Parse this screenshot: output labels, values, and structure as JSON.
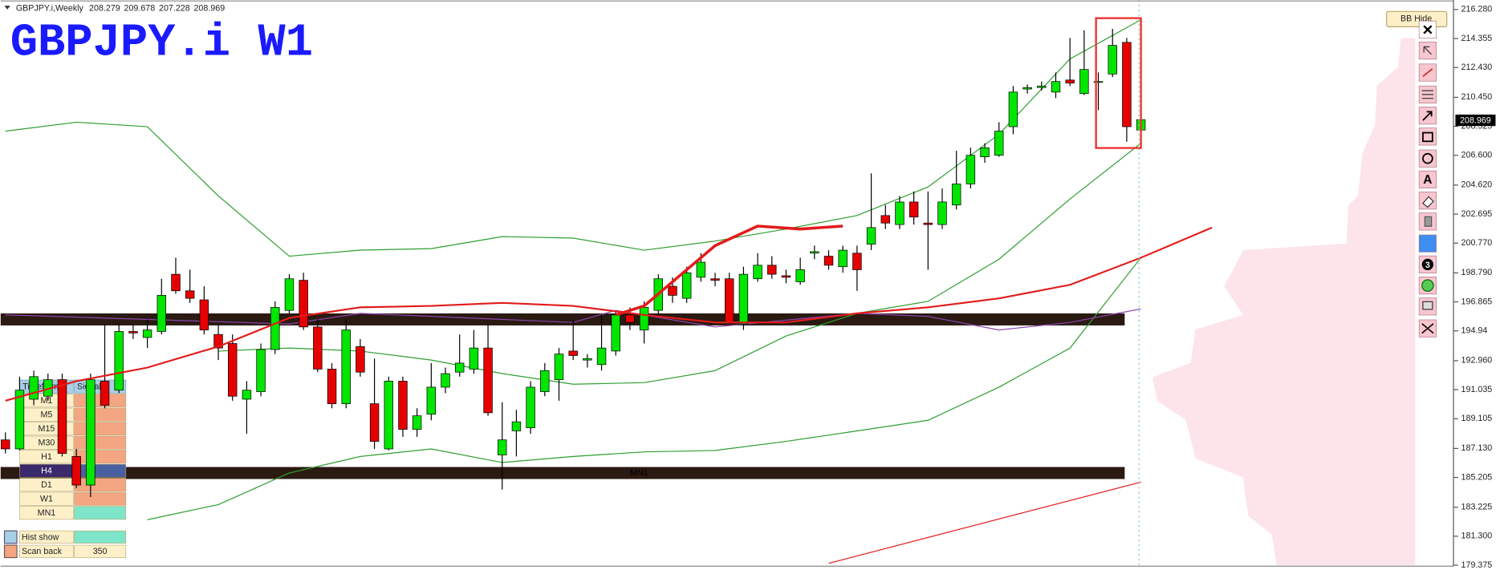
{
  "chart_data": {
    "type": "candlestick",
    "title": "GBPJPY.i W1",
    "symbol": "GBPJPY.i,Weekly",
    "categories": [
      null,
      null,
      null,
      null,
      null,
      null,
      null,
      null,
      null,
      null,
      null,
      null,
      null,
      null,
      null,
      null,
      null,
      null,
      null,
      null,
      null,
      null,
      null,
      null,
      null,
      null,
      null,
      null,
      null,
      null,
      null,
      null,
      null,
      null,
      null,
      null,
      null,
      null,
      null,
      null,
      null,
      null,
      null,
      null,
      null,
      null,
      null,
      null,
      null,
      null,
      null,
      null,
      null,
      null,
      null,
      null,
      null,
      null,
      null,
      null,
      null,
      null,
      null,
      null,
      null,
      null,
      null,
      null,
      null,
      null,
      null,
      null,
      null,
      null,
      null,
      null,
      null,
      null,
      null,
      null,
      null
    ],
    "open": [
      187.7,
      187.1,
      190.4,
      190.6,
      191.7,
      186.6,
      184.7,
      191.6,
      191.0,
      194.9,
      194.5,
      194.9,
      198.7,
      197.6,
      197.0,
      194.7,
      194.1,
      190.4,
      190.9,
      193.7,
      196.3,
      198.3,
      195.2,
      192.4,
      190.1,
      193.9,
      190.1,
      187.1,
      191.6,
      188.4,
      189.4,
      191.2,
      192.2,
      192.4,
      193.8,
      186.7,
      188.3,
      188.5,
      190.9,
      191.7,
      193.6,
      193.0,
      192.7,
      193.6,
      196.0,
      195.0,
      196.3,
      197.9,
      197.1,
      198.5,
      198.4,
      198.4,
      195.4,
      198.4,
      199.3,
      198.6,
      198.2,
      200.1,
      199.9,
      199.2,
      200.1,
      200.7,
      202.6,
      202.0,
      203.5,
      202.1,
      202.0,
      203.3,
      204.7,
      206.5,
      206.6,
      208.5,
      211.0,
      211.1,
      210.8,
      211.6,
      210.7,
      211.5,
      212.0,
      214.1,
      208.279
    ],
    "high": [
      188.2,
      191.9,
      192.3,
      192.1,
      192.1,
      187.1,
      192.1,
      195.4,
      195.4,
      195.4,
      195.7,
      198.4,
      199.8,
      199.0,
      197.9,
      195.4,
      194.7,
      191.6,
      194.1,
      196.9,
      198.7,
      198.8,
      195.7,
      192.8,
      195.7,
      194.4,
      193.1,
      191.9,
      191.9,
      189.8,
      192.8,
      192.5,
      194.7,
      195.0,
      195.5,
      190.2,
      189.7,
      191.6,
      192.8,
      193.8,
      195.7,
      193.4,
      196.0,
      196.3,
      196.5,
      196.9,
      198.7,
      198.5,
      199.2,
      200.1,
      198.8,
      198.8,
      199.2,
      200.1,
      199.9,
      199.0,
      199.8,
      200.6,
      200.3,
      200.6,
      200.6,
      205.4,
      203.3,
      203.9,
      204.2,
      204.2,
      204.4,
      206.9,
      207.1,
      207.4,
      208.8,
      211.2,
      211.3,
      211.5,
      212.1,
      214.4,
      214.9,
      212.1,
      215.0,
      214.4,
      209.678
    ],
    "low": [
      186.8,
      187.0,
      190.0,
      190.3,
      186.6,
      184.5,
      183.9,
      189.8,
      190.8,
      194.4,
      193.8,
      194.7,
      197.4,
      196.8,
      194.7,
      193.0,
      190.3,
      188.1,
      190.6,
      193.4,
      196.0,
      195.0,
      192.2,
      189.8,
      189.8,
      191.9,
      187.1,
      187.0,
      187.9,
      187.9,
      189.0,
      190.8,
      191.9,
      192.1,
      189.3,
      184.4,
      186.6,
      188.1,
      190.6,
      190.3,
      193.0,
      192.5,
      192.3,
      193.3,
      195.0,
      194.1,
      196.0,
      196.8,
      196.8,
      198.2,
      197.9,
      195.4,
      195.0,
      198.2,
      198.4,
      198.1,
      198.0,
      199.7,
      199.0,
      198.8,
      197.6,
      200.3,
      201.7,
      201.7,
      202.0,
      199.0,
      201.7,
      203.0,
      204.4,
      206.1,
      206.5,
      208.0,
      210.7,
      210.9,
      210.4,
      211.2,
      210.6,
      209.6,
      211.8,
      207.5,
      207.228
    ],
    "close": [
      187.1,
      191.0,
      191.9,
      191.7,
      186.8,
      184.7,
      191.7,
      190.0,
      194.9,
      194.8,
      195.0,
      197.3,
      197.6,
      197.1,
      195.0,
      193.8,
      190.6,
      191.0,
      193.7,
      196.5,
      198.4,
      195.2,
      192.4,
      190.1,
      195.0,
      192.2,
      187.6,
      191.6,
      188.4,
      189.3,
      191.2,
      192.1,
      192.8,
      193.8,
      189.5,
      187.7,
      188.9,
      191.2,
      192.3,
      193.4,
      193.3,
      193.1,
      193.8,
      196.0,
      195.5,
      196.5,
      198.4,
      197.3,
      198.8,
      199.5,
      198.3,
      195.5,
      198.7,
      199.3,
      198.7,
      198.5,
      199.0,
      200.2,
      199.3,
      200.3,
      199.0,
      201.8,
      202.1,
      203.5,
      202.5,
      202.0,
      203.5,
      204.7,
      206.6,
      207.1,
      208.2,
      210.8,
      211.1,
      211.2,
      211.5,
      211.4,
      212.3,
      211.5,
      213.9,
      208.5,
      208.969
    ],
    "up_color": "#00e600",
    "down_color": "#e60000",
    "ylim": [
      179.375,
      216.28
    ],
    "yticks": [
      {
        "value": 216.28,
        "label": "216.280"
      },
      {
        "value": 214.355,
        "label": "214.355"
      },
      {
        "value": 212.43,
        "label": "212.430"
      },
      {
        "value": 210.45,
        "label": "210.450"
      },
      {
        "value": 208.525,
        "label": "208.525"
      },
      {
        "value": 206.6,
        "label": "206.600"
      },
      {
        "value": 204.62,
        "label": "204.620"
      },
      202.695,
      {
        "value": 200.77,
        "label": "200.770"
      },
      {
        "value": 198.79,
        "label": "198.790"
      },
      196.865,
      194.94,
      {
        "value": 192.96,
        "label": "192.960"
      },
      191.035,
      189.105,
      {
        "value": 187.13,
        "label": "187.130"
      },
      185.205,
      183.225,
      {
        "value": 181.3,
        "label": "181.300"
      },
      179.375
    ],
    "overlays": [
      {
        "color": "#2e9e2e",
        "width": 1,
        "x": [
          0,
          5,
          10,
          15,
          20,
          25,
          30,
          35,
          40,
          45,
          50,
          55,
          60,
          65,
          70,
          75,
          80
        ],
        "values": [
          208.2,
          208.8,
          208.5,
          203.9,
          199.9,
          200.3,
          200.4,
          201.2,
          201.1,
          200.3,
          200.9,
          201.7,
          202.6,
          204.5,
          208.0,
          213.0,
          215.6
        ]
      },
      {
        "color": "#2e9e2e",
        "width": 1,
        "x": [
          15,
          20,
          25,
          30,
          35,
          40,
          45,
          50,
          55,
          60,
          65,
          70,
          75,
          80
        ],
        "values": [
          193.6,
          193.8,
          193.6,
          193.0,
          192.1,
          191.4,
          191.5,
          192.3,
          194.6,
          196.1,
          196.9,
          199.7,
          203.7,
          207.4
        ]
      },
      {
        "color": "#2e9e2e",
        "width": 1,
        "x": [
          10,
          15,
          20,
          25,
          30,
          35,
          40,
          45,
          50,
          55,
          60,
          65,
          70,
          75,
          80
        ],
        "values": [
          182.4,
          183.4,
          185.5,
          186.6,
          187.1,
          186.2,
          186.6,
          186.9,
          187.0,
          187.6,
          188.3,
          189.0,
          191.2,
          193.8,
          199.8
        ]
      },
      {
        "color": "#8e44ad",
        "width": 1,
        "x": [
          0,
          20,
          25,
          40,
          43,
          50,
          60,
          65,
          70,
          75,
          80
        ],
        "values": [
          196.0,
          195.4,
          196.1,
          195.5,
          196.3,
          195.2,
          196.1,
          195.9,
          195.0,
          195.5,
          196.4
        ]
      },
      {
        "color": "#e31b1b",
        "width": 1.8,
        "x": [
          0,
          5,
          10,
          15,
          20,
          25,
          30,
          35,
          40,
          45,
          50,
          55,
          60,
          65,
          70,
          75,
          80,
          85
        ],
        "values": [
          190.3,
          191.6,
          192.5,
          193.9,
          195.8,
          196.5,
          196.6,
          196.8,
          196.6,
          196.0,
          195.5,
          195.5,
          196.1,
          196.5,
          197.1,
          198.0,
          199.8,
          201.8
        ]
      },
      {
        "color": "#e31b1b",
        "width": 3,
        "x": [
          43,
          45,
          48,
          50,
          53,
          56,
          59
        ],
        "values": [
          196.0,
          196.6,
          199.0,
          200.6,
          201.9,
          201.7,
          201.9
        ]
      },
      {
        "color": "#e31b1b",
        "width": 1,
        "x": [
          58,
          80
        ],
        "values": [
          179.5,
          184.9
        ]
      }
    ],
    "zones": [
      {
        "top": 196.1,
        "bottom": 195.3
      },
      {
        "top": 185.9,
        "bottom": 185.1,
        "label": "MN1"
      }
    ]
  },
  "panel": {
    "headers": [
      "Timeframe",
      "Signal"
    ],
    "rows": [
      {
        "label": "M1",
        "color": "#f4a582"
      },
      {
        "label": "M5",
        "color": "#f4a582"
      },
      {
        "label": "M15",
        "color": "#f4a582"
      },
      {
        "label": "M30",
        "color": "#f4a582"
      },
      {
        "label": "H1",
        "color": "#f4a582"
      },
      {
        "label": "H4",
        "color": "#4a5fa0"
      },
      {
        "label": "D1",
        "color": "#f4a582"
      },
      {
        "label": "W1",
        "color": "#f4a582"
      },
      {
        "label": "MN1",
        "color": "#7fe5c8"
      }
    ],
    "hist_label": "Hist show",
    "hist_color": "#7fe5c8",
    "scan_label": "Scan back",
    "scan_value": 350
  },
  "button": "BB Hide",
  "toolbar": {
    "text_tool": "A",
    "badge": "3"
  }
}
